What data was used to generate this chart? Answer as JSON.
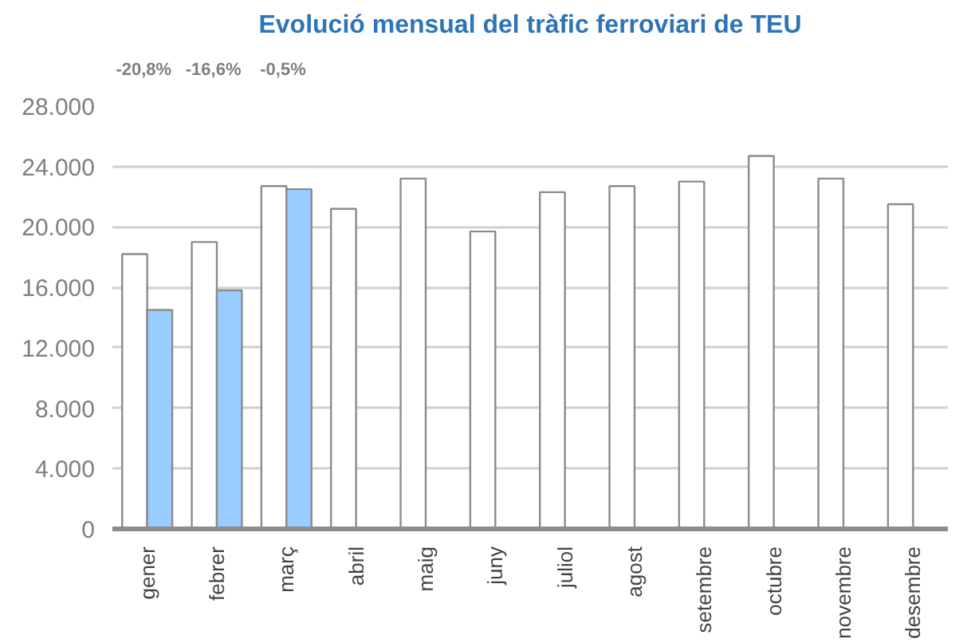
{
  "chart_data": {
    "type": "bar",
    "title": "Evolució mensual del tràfic ferroviari de TEU",
    "categories": [
      "gener",
      "febrer",
      "març",
      "abril",
      "maig",
      "juny",
      "juliol",
      "agost",
      "setembre",
      "octubre",
      "novembre",
      "desembre"
    ],
    "series": [
      {
        "color": "#ffffff",
        "values": [
          18200,
          19000,
          22700,
          21200,
          23200,
          19700,
          22300,
          22700,
          23000,
          24700,
          23200,
          21500
        ]
      },
      {
        "color": "#99ccff",
        "values": [
          14500,
          15800,
          22500,
          null,
          null,
          null,
          null,
          null,
          null,
          null,
          null,
          null
        ]
      }
    ],
    "ylim": [
      0,
      28000
    ],
    "yticks": [
      0,
      {
        "value": 4000,
        "label": "4.000"
      },
      {
        "value": 8000,
        "label": "8.000"
      },
      {
        "value": 12000,
        "label": "12.000"
      },
      {
        "value": 16000,
        "label": "16.000"
      },
      {
        "value": 20000,
        "label": "20.000"
      },
      {
        "value": 24000,
        "label": "24.000"
      },
      {
        "value": 28000,
        "label": "28.000"
      }
    ],
    "grid": "y",
    "annotations": [
      "-20,8%",
      "-16,6%",
      "-0,5%"
    ]
  }
}
